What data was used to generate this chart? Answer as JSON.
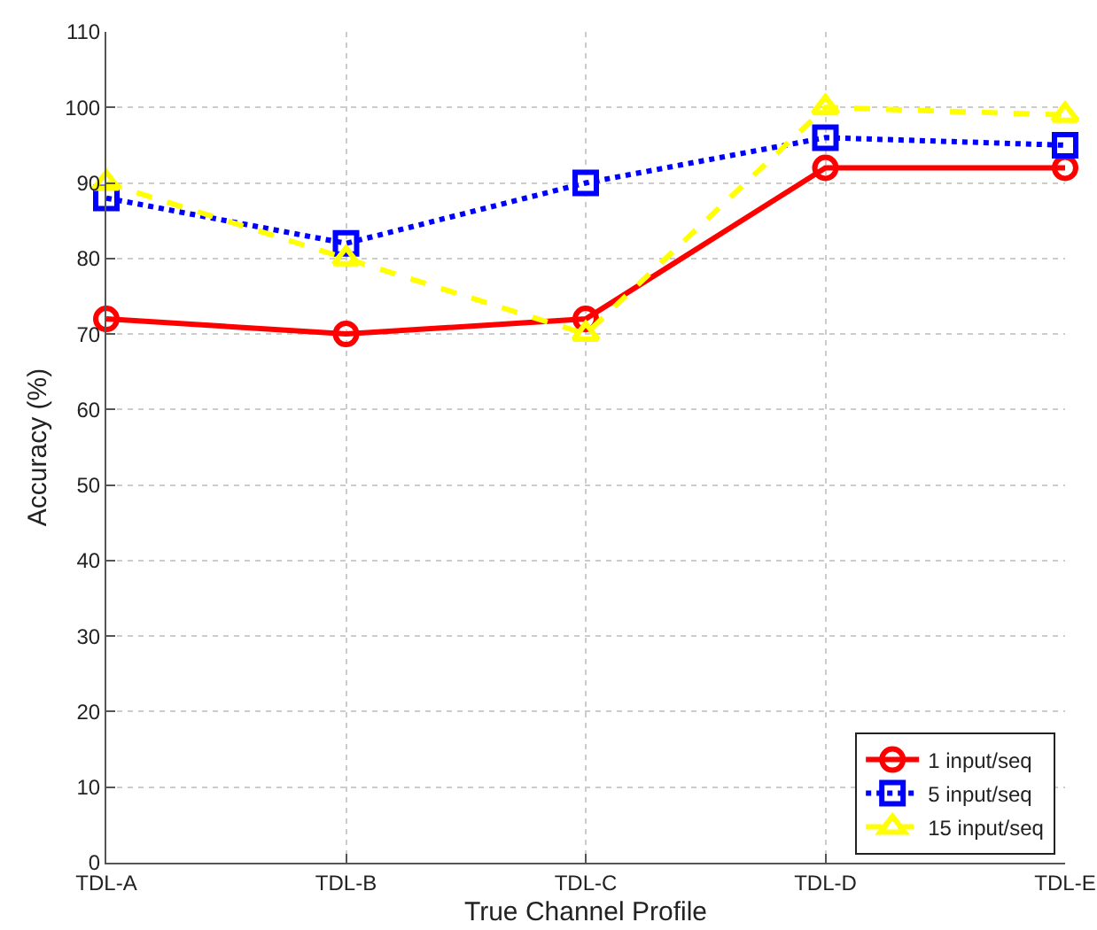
{
  "chart_data": {
    "type": "line",
    "xlabel": "True Channel Profile",
    "ylabel": "Accuracy (%)",
    "categories": [
      "TDL-A",
      "TDL-B",
      "TDL-C",
      "TDL-D",
      "TDL-E"
    ],
    "series": [
      {
        "name": "1 input/seq",
        "color": "#ff0000",
        "marker": "circle",
        "line_style": "solid",
        "values": [
          72,
          70,
          72,
          92,
          92
        ]
      },
      {
        "name": "5 input/seq",
        "color": "#0000ff",
        "marker": "square",
        "line_style": "dotted",
        "values": [
          88,
          82,
          90,
          96,
          95
        ]
      },
      {
        "name": "15 input/seq",
        "color": "#ffff00",
        "marker": "triangle",
        "line_style": "dashed",
        "values": [
          90,
          80,
          70,
          100,
          99
        ]
      }
    ],
    "ylim": [
      0,
      110
    ],
    "yticks": [
      0,
      10,
      20,
      30,
      40,
      50,
      60,
      70,
      80,
      90,
      100,
      110
    ],
    "grid": true,
    "legend": "bottom right"
  }
}
